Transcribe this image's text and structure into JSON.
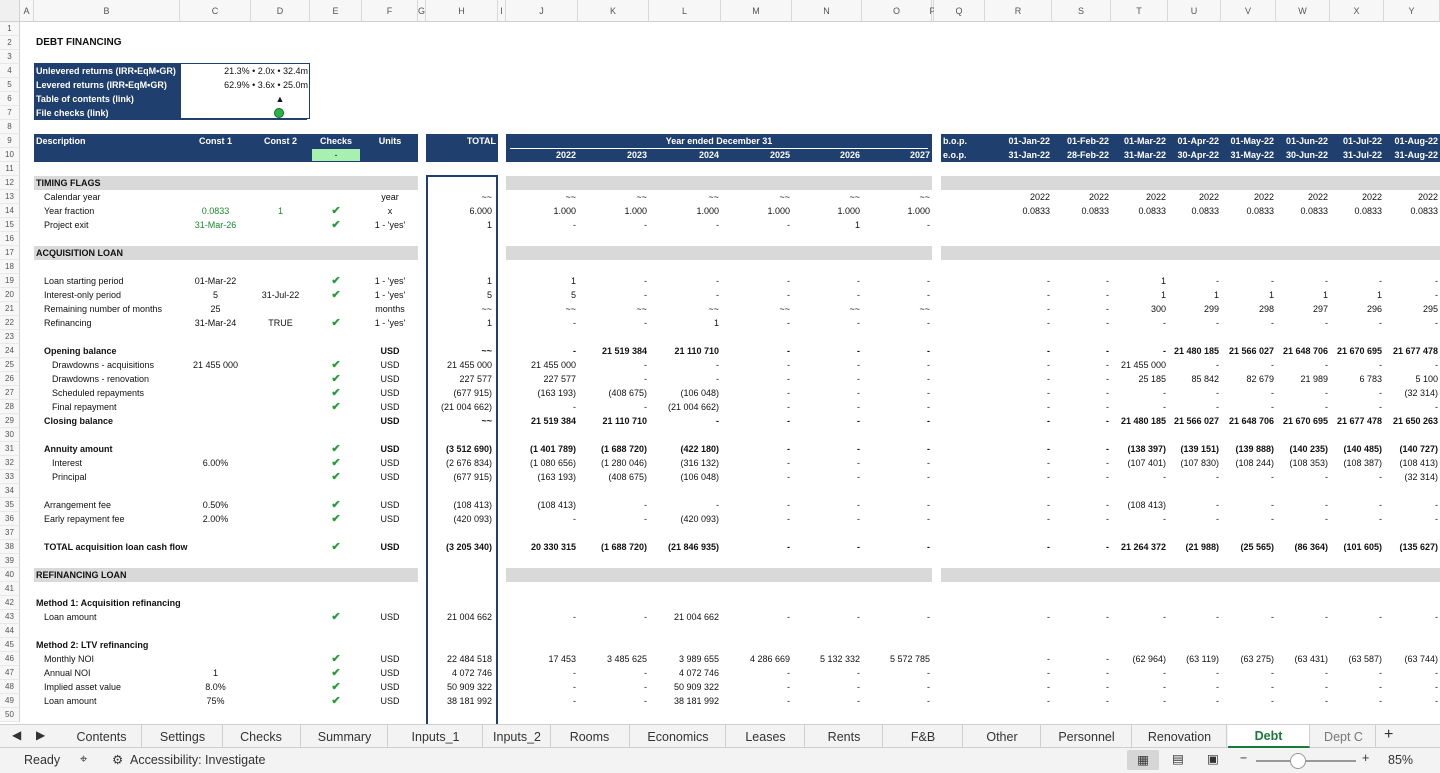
{
  "columns": [
    "A",
    "B",
    "C",
    "D",
    "E",
    "F",
    "G",
    "H",
    "I",
    "J",
    "K",
    "L",
    "M",
    "N",
    "O",
    "P",
    "Q",
    "R",
    "S",
    "T",
    "U",
    "V",
    "W",
    "X",
    "Y"
  ],
  "row_numbers": [
    "1",
    "2",
    "3",
    "4",
    "5",
    "6",
    "7",
    "8",
    "9",
    "10",
    "11",
    "12",
    "13",
    "14",
    "15",
    "16",
    "17",
    "18",
    "19",
    "20",
    "21",
    "22",
    "23",
    "24",
    "25",
    "26",
    "27",
    "28",
    "29",
    "30",
    "31",
    "32",
    "33",
    "34",
    "35",
    "36",
    "37",
    "38",
    "39",
    "40",
    "41",
    "42",
    "43",
    "44",
    "45",
    "46",
    "47",
    "48",
    "49",
    "50"
  ],
  "title": "DEBT FINANCING",
  "summary": [
    {
      "label": "Unlevered returns (IRR•EqM•GR)",
      "value": "21.3% • 2.0x • 32.4m"
    },
    {
      "label": "Levered returns (IRR•EqM•GR)",
      "value": "62.9% • 3.6x • 25.0m"
    },
    {
      "label": "Table of contents (link)",
      "value": "▲"
    },
    {
      "label": "File checks (link)",
      "value": ""
    }
  ],
  "header": {
    "description": "Description",
    "const1": "Const 1",
    "const2": "Const 2",
    "checks": "Checks",
    "checks_value": "-",
    "units": "Units",
    "total": "TOTAL",
    "year_title": "Year ended December 31",
    "years": [
      "2022",
      "2023",
      "2024",
      "2025",
      "2026",
      "2027"
    ],
    "bop": "b.o.p.",
    "eop": "e.o.p.",
    "bop_dates": [
      "01-Jan-22",
      "01-Feb-22",
      "01-Mar-22",
      "01-Apr-22",
      "01-May-22",
      "01-Jun-22",
      "01-Jul-22",
      "01-Aug-22"
    ],
    "eop_dates": [
      "31-Jan-22",
      "28-Feb-22",
      "31-Mar-22",
      "30-Apr-22",
      "31-May-22",
      "30-Jun-22",
      "31-Jul-22",
      "31-Aug-22"
    ]
  },
  "rows": [
    {
      "row": 12,
      "section": "TIMING FLAGS"
    },
    {
      "row": 13,
      "label": "Calendar year",
      "indent": 1,
      "units": "year",
      "total": "~~",
      "years": [
        "~~",
        "~~",
        "~~",
        "~~",
        "~~",
        "~~"
      ],
      "months": [
        "2022",
        "2022",
        "2022",
        "2022",
        "2022",
        "2022",
        "2022",
        "2022"
      ]
    },
    {
      "row": 14,
      "label": "Year fraction",
      "indent": 1,
      "c1": "0.0833",
      "c1green": true,
      "c2": "1",
      "c2green": true,
      "check": true,
      "units": "x",
      "total": "6.000",
      "years": [
        "1.000",
        "1.000",
        "1.000",
        "1.000",
        "1.000",
        "1.000"
      ],
      "months": [
        "0.0833",
        "0.0833",
        "0.0833",
        "0.0833",
        "0.0833",
        "0.0833",
        "0.0833",
        "0.0833"
      ]
    },
    {
      "row": 15,
      "label": "Project exit",
      "indent": 1,
      "c1": "31-Mar-26",
      "c1green": true,
      "check": true,
      "units": "1 - 'yes'",
      "total": "1",
      "years": [
        "-",
        "-",
        "-",
        "-",
        "1",
        "-"
      ],
      "months": [
        "",
        "",
        "",
        "",
        "",
        "",
        "",
        ""
      ]
    },
    {
      "row": 17,
      "section": "ACQUISITION LOAN"
    },
    {
      "row": 19,
      "label": "Loan starting period",
      "indent": 1,
      "c1": "01-Mar-22",
      "check": true,
      "units": "1 - 'yes'",
      "total": "1",
      "years": [
        "1",
        "-",
        "-",
        "-",
        "-",
        "-"
      ],
      "months": [
        "-",
        "-",
        "1",
        "-",
        "-",
        "-",
        "-",
        "-"
      ]
    },
    {
      "row": 20,
      "label": "Interest-only period",
      "indent": 1,
      "c1": "5",
      "c2": "31-Jul-22",
      "check": true,
      "units": "1 - 'yes'",
      "total": "5",
      "years": [
        "5",
        "-",
        "-",
        "-",
        "-",
        "-"
      ],
      "months": [
        "-",
        "-",
        "1",
        "1",
        "1",
        "1",
        "1",
        "-"
      ]
    },
    {
      "row": 21,
      "label": "Remaining number of months",
      "indent": 1,
      "c1": "25",
      "units": "months",
      "total": "~~",
      "years": [
        "~~",
        "~~",
        "~~",
        "~~",
        "~~",
        "~~"
      ],
      "months": [
        "-",
        "-",
        "300",
        "299",
        "298",
        "297",
        "296",
        "295"
      ]
    },
    {
      "row": 22,
      "label": "Refinancing",
      "indent": 1,
      "c1": "31-Mar-24",
      "c2": "TRUE",
      "check": true,
      "units": "1 - 'yes'",
      "total": "1",
      "years": [
        "-",
        "-",
        "1",
        "-",
        "-",
        "-"
      ],
      "months": [
        "-",
        "-",
        "-",
        "-",
        "-",
        "-",
        "-",
        "-"
      ]
    },
    {
      "row": 24,
      "label": "Opening balance",
      "indent": 1,
      "bold": true,
      "units": "USD",
      "total": "~~",
      "years": [
        "-",
        "21 519 384",
        "21 110 710",
        "-",
        "-",
        "-"
      ],
      "months": [
        "-",
        "-",
        "-",
        "21 480 185",
        "21 566 027",
        "21 648 706",
        "21 670 695",
        "21 677 478"
      ]
    },
    {
      "row": 25,
      "label": "Drawdowns - acquisitions",
      "indent": 2,
      "c1": "21 455 000",
      "check": true,
      "units": "USD",
      "total": "21 455 000",
      "years": [
        "21 455 000",
        "-",
        "-",
        "-",
        "-",
        "-"
      ],
      "months": [
        "-",
        "-",
        "21 455 000",
        "-",
        "-",
        "-",
        "-",
        "-"
      ]
    },
    {
      "row": 26,
      "label": "Drawdowns - renovation",
      "indent": 2,
      "check": true,
      "units": "USD",
      "total": "227 577",
      "years": [
        "227 577",
        "-",
        "-",
        "-",
        "-",
        "-"
      ],
      "months": [
        "-",
        "-",
        "25 185",
        "85 842",
        "82 679",
        "21 989",
        "6 783",
        "5 100"
      ]
    },
    {
      "row": 27,
      "label": "Scheduled repayments",
      "indent": 2,
      "check": true,
      "units": "USD",
      "total": "(677 915)",
      "years": [
        "(163 193)",
        "(408 675)",
        "(106 048)",
        "-",
        "-",
        "-"
      ],
      "months": [
        "-",
        "-",
        "-",
        "-",
        "-",
        "-",
        "-",
        "(32 314)"
      ]
    },
    {
      "row": 28,
      "label": "Final repayment",
      "indent": 2,
      "check": true,
      "units": "USD",
      "total": "(21 004 662)",
      "years": [
        "-",
        "-",
        "(21 004 662)",
        "-",
        "-",
        "-"
      ],
      "months": [
        "-",
        "-",
        "-",
        "-",
        "-",
        "-",
        "-",
        "-"
      ]
    },
    {
      "row": 29,
      "label": "Closing balance",
      "indent": 1,
      "bold": true,
      "units": "USD",
      "total": "~~",
      "years": [
        "21 519 384",
        "21 110 710",
        "-",
        "-",
        "-",
        "-"
      ],
      "months": [
        "-",
        "-",
        "21 480 185",
        "21 566 027",
        "21 648 706",
        "21 670 695",
        "21 677 478",
        "21 650 263"
      ]
    },
    {
      "row": 31,
      "label": "Annuity amount",
      "indent": 1,
      "bold": true,
      "check": true,
      "units": "USD",
      "total": "(3 512 690)",
      "years": [
        "(1 401 789)",
        "(1 688 720)",
        "(422 180)",
        "-",
        "-",
        "-"
      ],
      "months": [
        "-",
        "-",
        "(138 397)",
        "(139 151)",
        "(139 888)",
        "(140 235)",
        "(140 485)",
        "(140 727)"
      ]
    },
    {
      "row": 32,
      "label": "Interest",
      "indent": 2,
      "c1": "6.00%",
      "check": true,
      "units": "USD",
      "total": "(2 676 834)",
      "years": [
        "(1 080 656)",
        "(1 280 046)",
        "(316 132)",
        "-",
        "-",
        "-"
      ],
      "months": [
        "-",
        "-",
        "(107 401)",
        "(107 830)",
        "(108 244)",
        "(108 353)",
        "(108 387)",
        "(108 413)"
      ]
    },
    {
      "row": 33,
      "label": "Principal",
      "indent": 2,
      "check": true,
      "units": "USD",
      "total": "(677 915)",
      "years": [
        "(163 193)",
        "(408 675)",
        "(106 048)",
        "-",
        "-",
        "-"
      ],
      "months": [
        "-",
        "-",
        "-",
        "-",
        "-",
        "-",
        "-",
        "(32 314)"
      ]
    },
    {
      "row": 35,
      "label": "Arrangement fee",
      "indent": 1,
      "c1": "0.50%",
      "check": true,
      "units": "USD",
      "total": "(108 413)",
      "years": [
        "(108 413)",
        "-",
        "-",
        "-",
        "-",
        "-"
      ],
      "months": [
        "-",
        "-",
        "(108 413)",
        "-",
        "-",
        "-",
        "-",
        "-"
      ]
    },
    {
      "row": 36,
      "label": "Early repayment fee",
      "indent": 1,
      "c1": "2.00%",
      "check": true,
      "units": "USD",
      "total": "(420 093)",
      "years": [
        "-",
        "-",
        "(420 093)",
        "-",
        "-",
        "-"
      ],
      "months": [
        "-",
        "-",
        "-",
        "-",
        "-",
        "-",
        "-",
        "-"
      ]
    },
    {
      "row": 38,
      "label": "TOTAL acquisition loan cash flow",
      "indent": 1,
      "bold": true,
      "check": true,
      "units": "USD",
      "total": "(3 205 340)",
      "years": [
        "20 330 315",
        "(1 688 720)",
        "(21 846 935)",
        "-",
        "-",
        "-"
      ],
      "months": [
        "-",
        "-",
        "21 264 372",
        "(21 988)",
        "(25 565)",
        "(86 364)",
        "(101 605)",
        "(135 627)"
      ]
    },
    {
      "row": 40,
      "section": "REFINANCING LOAN"
    },
    {
      "row": 42,
      "label": "Method 1: Acquisition refinancing",
      "indent": 0,
      "bold": true
    },
    {
      "row": 43,
      "label": "Loan amount",
      "indent": 1,
      "check": true,
      "units": "USD",
      "total": "21 004 662",
      "years": [
        "-",
        "-",
        "21 004 662",
        "-",
        "-",
        "-"
      ],
      "months": [
        "-",
        "-",
        "-",
        "-",
        "-",
        "-",
        "-",
        "-"
      ]
    },
    {
      "row": 45,
      "label": "Method 2: LTV refinancing",
      "indent": 0,
      "bold": true
    },
    {
      "row": 46,
      "label": "Monthly NOI",
      "indent": 1,
      "check": true,
      "units": "USD",
      "total": "22 484 518",
      "years": [
        "17 453",
        "3 485 625",
        "3 989 655",
        "4 286 669",
        "5 132 332",
        "5 572 785"
      ],
      "months": [
        "-",
        "-",
        "(62 964)",
        "(63 119)",
        "(63 275)",
        "(63 431)",
        "(63 587)",
        "(63 744)"
      ]
    },
    {
      "row": 47,
      "label": "Annual NOI",
      "indent": 1,
      "c1": "1",
      "check": true,
      "units": "USD",
      "total": "4 072 746",
      "years": [
        "-",
        "-",
        "4 072 746",
        "-",
        "-",
        "-"
      ],
      "months": [
        "-",
        "-",
        "-",
        "-",
        "-",
        "-",
        "-",
        "-"
      ]
    },
    {
      "row": 48,
      "label": "Implied asset value",
      "indent": 1,
      "c1": "8.0%",
      "check": true,
      "units": "USD",
      "total": "50 909 322",
      "years": [
        "-",
        "-",
        "50 909 322",
        "-",
        "-",
        "-"
      ],
      "months": [
        "-",
        "-",
        "-",
        "-",
        "-",
        "-",
        "-",
        "-"
      ]
    },
    {
      "row": 49,
      "label": "Loan amount",
      "indent": 1,
      "c1": "75%",
      "check": true,
      "units": "USD",
      "total": "38 181 992",
      "years": [
        "-",
        "-",
        "38 181 992",
        "-",
        "-",
        "-"
      ],
      "months": [
        "-",
        "-",
        "-",
        "-",
        "-",
        "-",
        "-",
        "-"
      ]
    }
  ],
  "tabs": [
    "Contents",
    "Settings",
    "Checks",
    "Summary",
    "Inputs_1",
    "Inputs_2",
    "Rooms",
    "Economics",
    "Leases",
    "Rents",
    "F&B",
    "Other",
    "Personnel",
    "Renovation",
    "Debt",
    "Dept C"
  ],
  "active_tab": "Debt",
  "check_glyph": "✔",
  "status": {
    "ready": "Ready",
    "accessibility": "Accessibility: Investigate",
    "zoom": "85%"
  },
  "colors": {
    "navy": "#1f3f6e",
    "section_gray": "#d9d9d9",
    "green": "#1a8a2a",
    "active_tab": "#1a7a3a",
    "check_bg": "#a8f0b0"
  }
}
